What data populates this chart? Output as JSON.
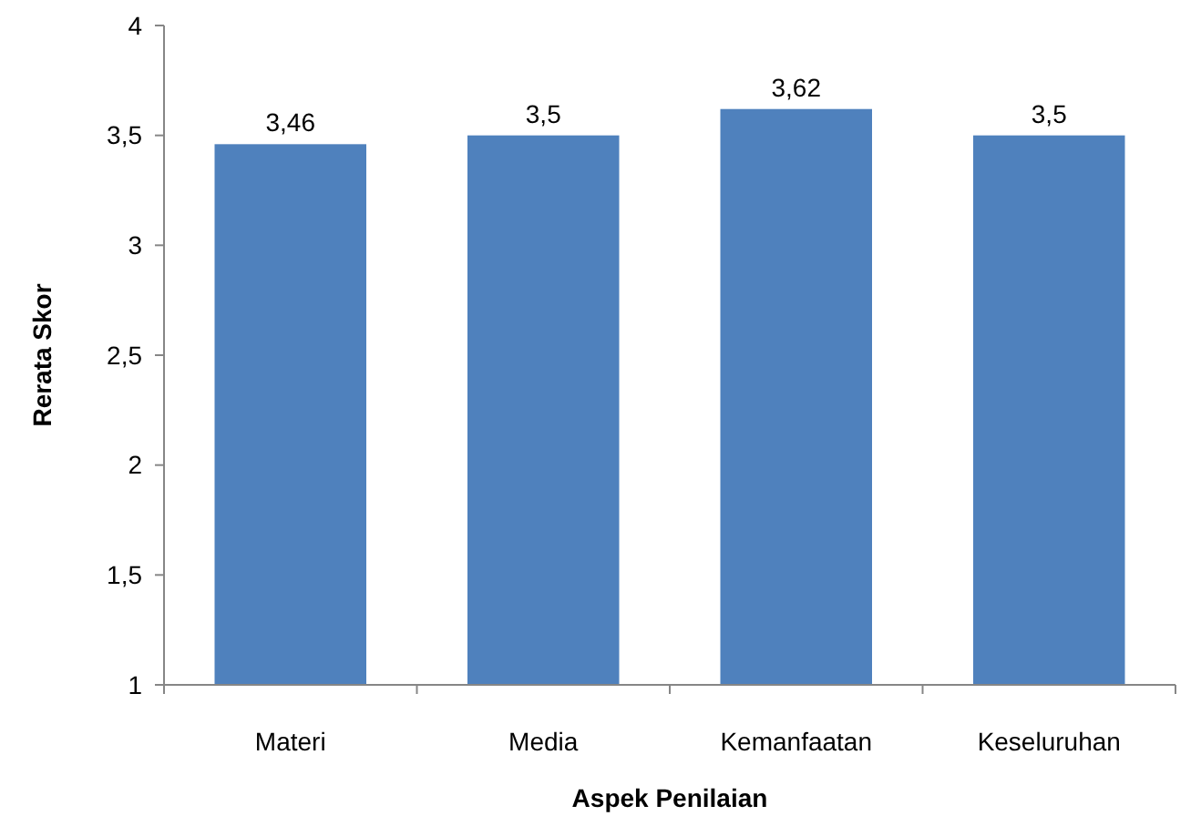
{
  "chart_data": {
    "type": "bar",
    "xlabel": "Aspek Penilaian",
    "ylabel": "Rerata Skor",
    "categories": [
      "Materi",
      "Media",
      "Kemanfaatan",
      "Keseluruhan"
    ],
    "values": [
      3.46,
      3.5,
      3.62,
      3.5
    ],
    "value_labels": [
      "3,46",
      "3,5",
      "3,62",
      "3,5"
    ],
    "color": "#4f81bd",
    "ylim": [
      1,
      4
    ],
    "yticks": [
      1,
      {
        "value": 1.5,
        "label": "1,5"
      },
      2,
      {
        "value": 2.5,
        "label": "2,5"
      },
      3,
      {
        "value": 3.5,
        "label": "3,5"
      },
      4
    ],
    "grid": false
  }
}
